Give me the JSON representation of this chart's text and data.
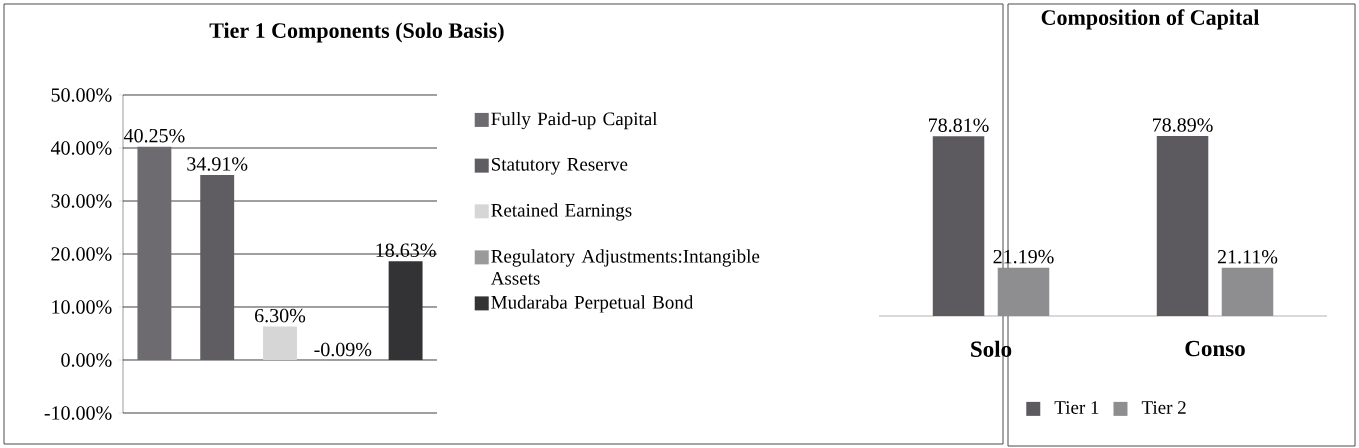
{
  "chart_data": [
    {
      "type": "bar",
      "title": "Tier 1 Components (Solo Basis)",
      "categories": [
        null,
        null,
        null,
        null,
        null
      ],
      "series": [
        {
          "name": "Fully Paid-up Capital",
          "color": "#6d6b70",
          "values": [
            40.25,
            null,
            null,
            null,
            null
          ],
          "value_labels": [
            "40.25%",
            null,
            null,
            null,
            null
          ]
        },
        {
          "name": "Statutory Reserve",
          "color": "#5f5d62",
          "values": [
            null,
            34.91,
            null,
            null,
            null
          ],
          "value_labels": [
            null,
            "34.91%",
            null,
            null,
            null
          ]
        },
        {
          "name": "Retained Earnings",
          "color": "#d6d6d6",
          "values": [
            null,
            null,
            6.3,
            null,
            null
          ],
          "value_labels": [
            null,
            null,
            "6.30%",
            null,
            null
          ]
        },
        {
          "name": "Regulatory Adjustments:Intangible Assets",
          "color": "#9a999c",
          "values": [
            null,
            null,
            null,
            -0.09,
            null
          ],
          "value_labels": [
            null,
            null,
            null,
            "-0.09%",
            null
          ]
        },
        {
          "name": "Mudaraba Perpetual Bond",
          "color": "#333335",
          "values": [
            null,
            null,
            null,
            null,
            18.63
          ],
          "value_labels": [
            null,
            null,
            null,
            null,
            "18.63%"
          ]
        }
      ],
      "ylim": [
        -10,
        50
      ],
      "yticks": [
        {
          "value": -10,
          "label": "-10.00%"
        },
        {
          "value": 0,
          "label": "0.00%"
        },
        {
          "value": 10,
          "label": "10.00%"
        },
        {
          "value": 20,
          "label": "20.00%"
        },
        {
          "value": 30,
          "label": "30.00%"
        },
        {
          "value": 40,
          "label": "40.00%"
        },
        {
          "value": 50,
          "label": "50.00%"
        }
      ],
      "grid": "y",
      "legend": "right"
    },
    {
      "type": "bar",
      "title": "Composition of Capital",
      "categories": [
        "Solo",
        "Conso"
      ],
      "series": [
        {
          "name": "Tier 1",
          "color": "#5c5a5e",
          "values": [
            78.81,
            78.89
          ],
          "value_labels": [
            "78.81%",
            "78.89%"
          ]
        },
        {
          "name": "Tier 2",
          "color": "#8e8d90",
          "values": [
            21.19,
            21.11
          ],
          "value_labels": [
            "21.19%",
            "21.11%"
          ]
        }
      ],
      "legend": "bottom"
    }
  ]
}
